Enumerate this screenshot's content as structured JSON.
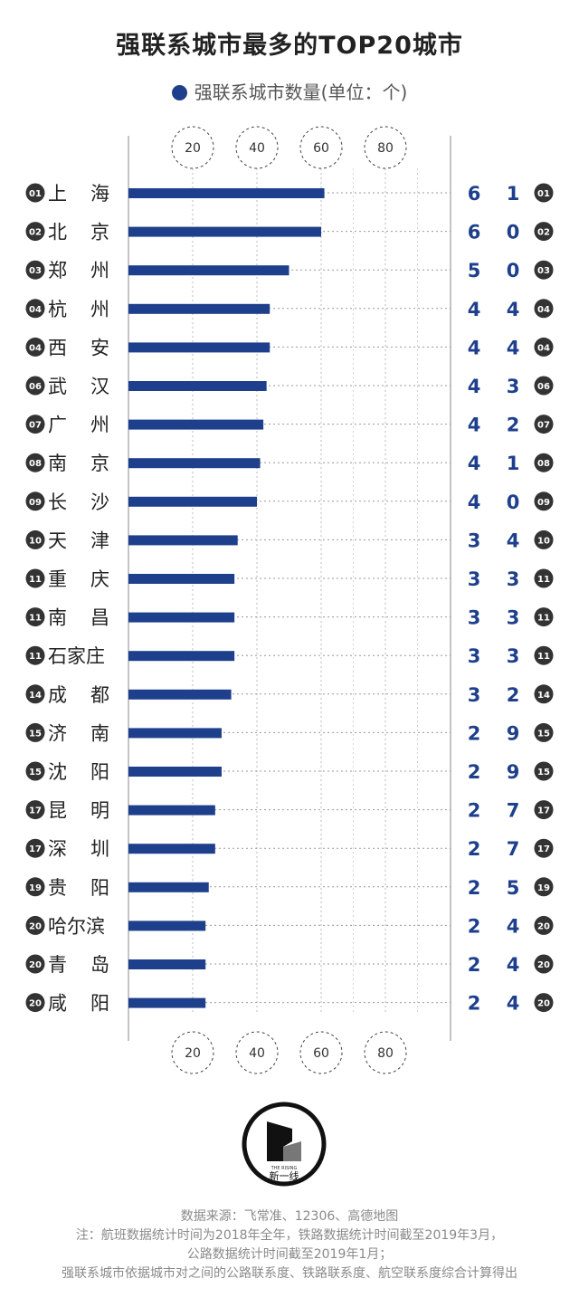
{
  "chart_data": {
    "type": "bar",
    "orientation": "horizontal",
    "title": "强联系城市最多的TOP20城市",
    "legend": "强联系城市数量(单位：个)",
    "xlim": [
      0,
      100
    ],
    "xticks": [
      20,
      40,
      60,
      80
    ],
    "grid": true,
    "color": "#1e3f8c",
    "rows": [
      {
        "rank": "01",
        "city": "上海",
        "value": 61,
        "digits": [
          "6",
          "1"
        ]
      },
      {
        "rank": "02",
        "city": "北京",
        "value": 60,
        "digits": [
          "6",
          "0"
        ]
      },
      {
        "rank": "03",
        "city": "郑州",
        "value": 50,
        "digits": [
          "5",
          "0"
        ]
      },
      {
        "rank": "04",
        "city": "杭州",
        "value": 44,
        "digits": [
          "4",
          "4"
        ]
      },
      {
        "rank": "04",
        "city": "西安",
        "value": 44,
        "digits": [
          "4",
          "4"
        ]
      },
      {
        "rank": "06",
        "city": "武汉",
        "value": 43,
        "digits": [
          "4",
          "3"
        ]
      },
      {
        "rank": "07",
        "city": "广州",
        "value": 42,
        "digits": [
          "4",
          "2"
        ]
      },
      {
        "rank": "08",
        "city": "南京",
        "value": 41,
        "digits": [
          "4",
          "1"
        ]
      },
      {
        "rank": "09",
        "city": "长沙",
        "value": 40,
        "digits": [
          "4",
          "0"
        ]
      },
      {
        "rank": "10",
        "city": "天津",
        "value": 34,
        "digits": [
          "3",
          "4"
        ]
      },
      {
        "rank": "11",
        "city": "重庆",
        "value": 33,
        "digits": [
          "3",
          "3"
        ]
      },
      {
        "rank": "11",
        "city": "南昌",
        "value": 33,
        "digits": [
          "3",
          "3"
        ]
      },
      {
        "rank": "11",
        "city": "石家庄",
        "value": 33,
        "digits": [
          "3",
          "3"
        ]
      },
      {
        "rank": "14",
        "city": "成都",
        "value": 32,
        "digits": [
          "3",
          "2"
        ]
      },
      {
        "rank": "15",
        "city": "济南",
        "value": 29,
        "digits": [
          "2",
          "9"
        ]
      },
      {
        "rank": "15",
        "city": "沈阳",
        "value": 29,
        "digits": [
          "2",
          "9"
        ]
      },
      {
        "rank": "17",
        "city": "昆明",
        "value": 27,
        "digits": [
          "2",
          "7"
        ]
      },
      {
        "rank": "17",
        "city": "深圳",
        "value": 27,
        "digits": [
          "2",
          "7"
        ]
      },
      {
        "rank": "19",
        "city": "贵阳",
        "value": 25,
        "digits": [
          "2",
          "5"
        ]
      },
      {
        "rank": "20",
        "city": "哈尔滨",
        "value": 24,
        "digits": [
          "2",
          "4"
        ]
      },
      {
        "rank": "20",
        "city": "青岛",
        "value": 24,
        "digits": [
          "2",
          "4"
        ]
      },
      {
        "rank": "20",
        "city": "咸阳",
        "value": 24,
        "digits": [
          "2",
          "4"
        ]
      }
    ]
  },
  "logo": {
    "caption": "新一线",
    "sub": "THE RISING"
  },
  "footer": {
    "source": "数据来源：飞常准、12306、高德地图",
    "note1": "注：航班数据统计时间为2018年全年，铁路数据统计时间截至2019年3月，",
    "note2": "公路数据统计时间截至2019年1月；",
    "note3": "强联系城市依据城市对之间的公路联系度、铁路联系度、航空联系度综合计算得出"
  }
}
